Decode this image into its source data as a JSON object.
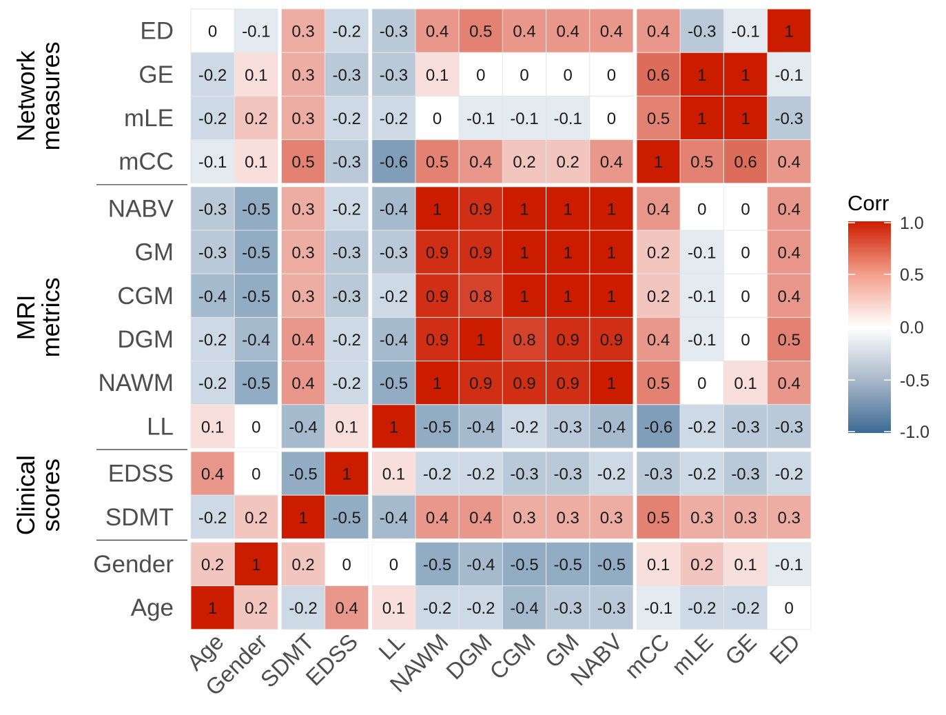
{
  "chart_data": {
    "type": "heatmap",
    "title": "",
    "x_categories": [
      "Age",
      "Gender",
      "SDMT",
      "EDSS",
      "LL",
      "NAWM",
      "DGM",
      "CGM",
      "GM",
      "NABV",
      "mCC",
      "mLE",
      "GE",
      "ED"
    ],
    "y_categories_top_to_bottom": [
      "ED",
      "GE",
      "mLE",
      "mCC",
      "NABV",
      "GM",
      "CGM",
      "DGM",
      "NAWM",
      "LL",
      "EDSS",
      "SDMT",
      "Gender",
      "Age"
    ],
    "values": [
      [
        0,
        -0.1,
        0.3,
        -0.2,
        -0.3,
        0.4,
        0.5,
        0.4,
        0.4,
        0.4,
        0.4,
        -0.3,
        -0.1,
        1
      ],
      [
        -0.2,
        0.1,
        0.3,
        -0.3,
        -0.3,
        0.1,
        0,
        0,
        0,
        0,
        0.6,
        1,
        1,
        -0.1
      ],
      [
        -0.2,
        0.2,
        0.3,
        -0.2,
        -0.2,
        0,
        -0.1,
        -0.1,
        -0.1,
        0,
        0.5,
        1,
        1,
        -0.3
      ],
      [
        -0.1,
        0.1,
        0.5,
        -0.3,
        -0.6,
        0.5,
        0.4,
        0.2,
        0.2,
        0.4,
        1,
        0.5,
        0.6,
        0.4
      ],
      [
        -0.3,
        -0.5,
        0.3,
        -0.2,
        -0.4,
        1,
        0.9,
        1,
        1,
        1,
        0.4,
        0,
        0,
        0.4
      ],
      [
        -0.3,
        -0.5,
        0.3,
        -0.3,
        -0.3,
        0.9,
        0.9,
        1,
        1,
        1,
        0.2,
        -0.1,
        0,
        0.4
      ],
      [
        -0.4,
        -0.5,
        0.3,
        -0.3,
        -0.2,
        0.9,
        0.8,
        1,
        1,
        1,
        0.2,
        -0.1,
        0,
        0.4
      ],
      [
        -0.2,
        -0.4,
        0.4,
        -0.2,
        -0.4,
        0.9,
        1,
        0.8,
        0.9,
        0.9,
        0.4,
        -0.1,
        0,
        0.5
      ],
      [
        -0.2,
        -0.5,
        0.4,
        -0.2,
        -0.5,
        1,
        0.9,
        0.9,
        0.9,
        1,
        0.5,
        0,
        0.1,
        0.4
      ],
      [
        0.1,
        0,
        -0.4,
        0.1,
        1,
        -0.5,
        -0.4,
        -0.2,
        -0.3,
        -0.4,
        -0.6,
        -0.2,
        -0.3,
        -0.3
      ],
      [
        0.4,
        0,
        -0.5,
        1,
        0.1,
        -0.2,
        -0.2,
        -0.3,
        -0.3,
        -0.2,
        -0.3,
        -0.2,
        -0.3,
        -0.2
      ],
      [
        -0.2,
        0.2,
        1,
        -0.5,
        -0.4,
        0.4,
        0.4,
        0.3,
        0.3,
        0.3,
        0.5,
        0.3,
        0.3,
        0.3
      ],
      [
        0.2,
        1,
        0.2,
        0,
        0,
        -0.5,
        -0.4,
        -0.5,
        -0.5,
        -0.5,
        0.1,
        0.2,
        0.1,
        -0.1
      ],
      [
        1,
        0.2,
        -0.2,
        0.4,
        0.1,
        -0.2,
        -0.2,
        -0.4,
        -0.3,
        -0.3,
        -0.1,
        -0.2,
        -0.2,
        0
      ]
    ],
    "color_scale": {
      "low": "#2166ac",
      "low_muted": "#3b6a93",
      "mid": "#ffffff",
      "high": "#cc1c00",
      "range": [
        -1,
        1
      ]
    },
    "row_groups": [
      {
        "label_lines": [
          "Network",
          "measures"
        ],
        "rows": [
          "ED",
          "GE",
          "mLE",
          "mCC"
        ]
      },
      {
        "label_lines": [
          "MRI",
          "metrics"
        ],
        "rows": [
          "NABV",
          "GM",
          "CGM",
          "DGM",
          "NAWM",
          "LL"
        ]
      },
      {
        "label_lines": [
          "Clinical",
          "scores"
        ],
        "rows": [
          "EDSS",
          "SDMT"
        ]
      }
    ],
    "legend": {
      "title": "Corr",
      "ticks": [
        "1.0",
        "0.5",
        "0.0",
        "-0.5",
        "-1.0"
      ],
      "tick_values": [
        1,
        0.5,
        0,
        -0.5,
        -1
      ],
      "position": "right"
    }
  }
}
